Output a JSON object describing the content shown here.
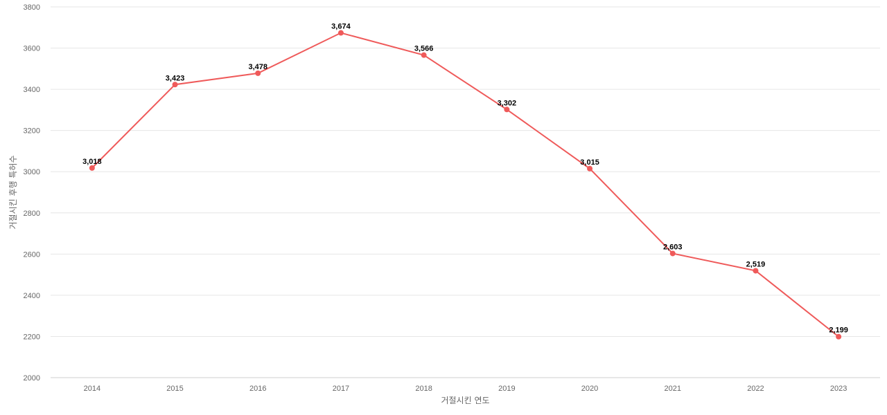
{
  "chart_data": {
    "type": "line",
    "title": "",
    "xlabel": "거절시킨 연도",
    "ylabel": "거절시킨 후행 특허수",
    "categories": [
      "2014",
      "2015",
      "2016",
      "2017",
      "2018",
      "2019",
      "2020",
      "2021",
      "2022",
      "2023"
    ],
    "series": [
      {
        "values": [
          3018,
          3423,
          3478,
          3674,
          3566,
          3302,
          3015,
          2603,
          2519,
          2199
        ],
        "color": "#ef5a5a",
        "data_labels": [
          "3,018",
          "3,423",
          "3,478",
          "3,674",
          "3,566",
          "3,302",
          "3,015",
          "2,603",
          "2,519",
          "2,199"
        ]
      }
    ],
    "ylim": [
      2000,
      3800
    ],
    "yticks": [
      "2000",
      "2200",
      "2400",
      "2600",
      "2800",
      "3000",
      "3200",
      "3400",
      "3600",
      "3800"
    ],
    "grid": true,
    "legend": "none"
  }
}
